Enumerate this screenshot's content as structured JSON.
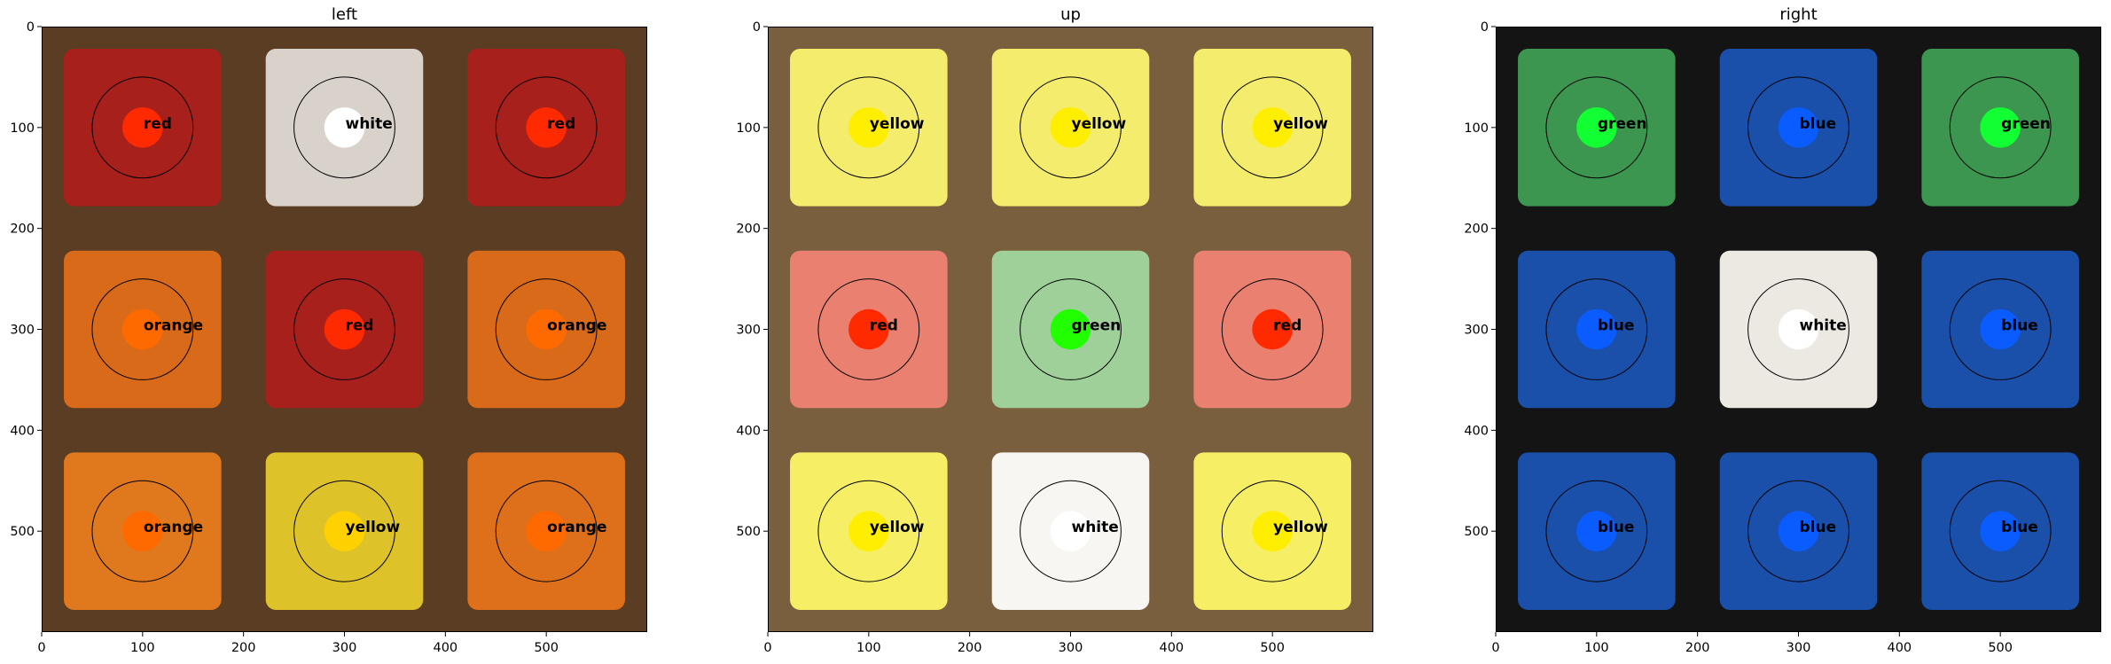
{
  "panels": [
    {
      "title": "left",
      "background": "#5a3d22",
      "stickers": [
        {
          "face": "#a8201c",
          "dot": "#ff2a00",
          "label": "red"
        },
        {
          "face": "#d8d2cb",
          "dot": "#ffffff",
          "label": "white"
        },
        {
          "face": "#a8201c",
          "dot": "#ff2a00",
          "label": "red"
        },
        {
          "face": "#d86a1a",
          "dot": "#ff6a00",
          "label": "orange"
        },
        {
          "face": "#a8201c",
          "dot": "#ff2a00",
          "label": "red"
        },
        {
          "face": "#d86a1a",
          "dot": "#ff6a00",
          "label": "orange"
        },
        {
          "face": "#e0781e",
          "dot": "#ff6a00",
          "label": "orange"
        },
        {
          "face": "#ddc22a",
          "dot": "#ffd100",
          "label": "yellow"
        },
        {
          "face": "#de701c",
          "dot": "#ff6a00",
          "label": "orange"
        }
      ]
    },
    {
      "title": "up",
      "background": "#7a5f3e",
      "stickers": [
        {
          "face": "#f4ec6c",
          "dot": "#ffee00",
          "label": "yellow"
        },
        {
          "face": "#f4ec6c",
          "dot": "#ffee00",
          "label": "yellow"
        },
        {
          "face": "#f4ec6c",
          "dot": "#ffee00",
          "label": "yellow"
        },
        {
          "face": "#ea8070",
          "dot": "#ff2a00",
          "label": "red"
        },
        {
          "face": "#9fd09a",
          "dot": "#22ff00",
          "label": "green"
        },
        {
          "face": "#ea8070",
          "dot": "#ff2a00",
          "label": "red"
        },
        {
          "face": "#f6ef66",
          "dot": "#ffee00",
          "label": "yellow"
        },
        {
          "face": "#f8f6f2",
          "dot": "#ffffff",
          "label": "white"
        },
        {
          "face": "#f6ef66",
          "dot": "#ffee00",
          "label": "yellow"
        }
      ]
    },
    {
      "title": "right",
      "background": "#141414",
      "stickers": [
        {
          "face": "#3c9650",
          "dot": "#11ff33",
          "label": "green"
        },
        {
          "face": "#1a4faa",
          "dot": "#0a5cff",
          "label": "blue"
        },
        {
          "face": "#3c9650",
          "dot": "#11ff33",
          "label": "green"
        },
        {
          "face": "#1a4faa",
          "dot": "#0a5cff",
          "label": "blue"
        },
        {
          "face": "#ece8e2",
          "dot": "#ffffff",
          "label": "white"
        },
        {
          "face": "#1a4faa",
          "dot": "#0a5cff",
          "label": "blue"
        },
        {
          "face": "#1a4faa",
          "dot": "#0a5cff",
          "label": "blue"
        },
        {
          "face": "#1a4faa",
          "dot": "#0a5cff",
          "label": "blue"
        },
        {
          "face": "#1a4faa",
          "dot": "#0a5cff",
          "label": "blue"
        }
      ]
    }
  ],
  "x_ticks": [
    "0",
    "100",
    "200",
    "300",
    "400",
    "500"
  ],
  "y_ticks": [
    "0",
    "100",
    "200",
    "300",
    "400",
    "500"
  ]
}
